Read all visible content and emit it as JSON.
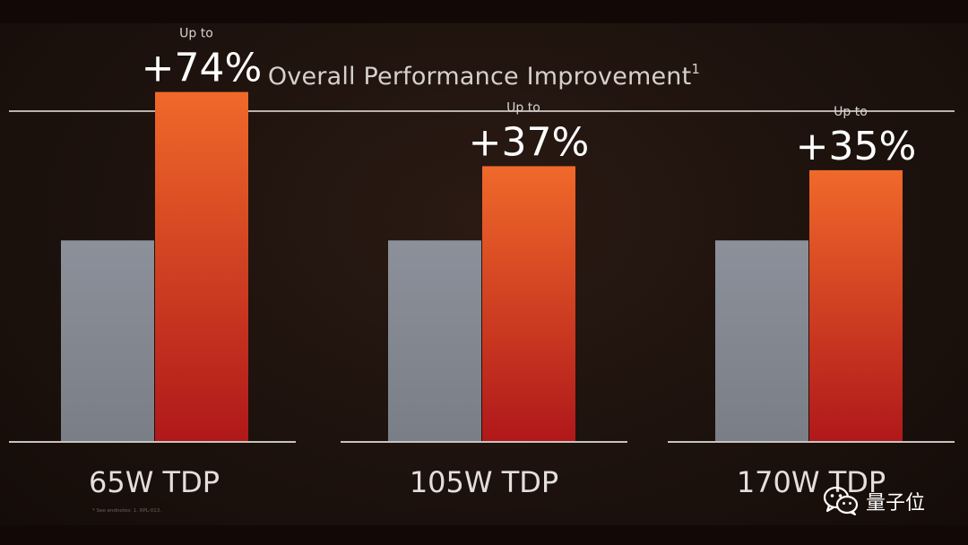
{
  "chart_data": {
    "type": "bar",
    "title": "Overall Performance Improvement",
    "title_superscript": "1",
    "categories": [
      "65W TDP",
      "105W TDP",
      "170W TDP"
    ],
    "series": [
      {
        "values": [
          1.0,
          1.0,
          1.0
        ]
      },
      {
        "values": [
          1.74,
          1.37,
          1.35
        ]
      }
    ],
    "annotations": [
      {
        "prefix": "Up to",
        "value": "+74%"
      },
      {
        "prefix": "Up to",
        "value": "+37%"
      },
      {
        "prefix": "Up to",
        "value": "+35%"
      }
    ],
    "ylim": [
      0,
      1.85
    ],
    "colors": {
      "baseline": "#8a8e97",
      "improved_top": "#f0692a",
      "improved_bottom": "#b0181a",
      "axis": "#c9c3be"
    },
    "grid": false
  },
  "footnote": "* See endnotes: 1. RPL-013.",
  "watermark": {
    "text": "量子位",
    "icon": "wechat-icon"
  }
}
